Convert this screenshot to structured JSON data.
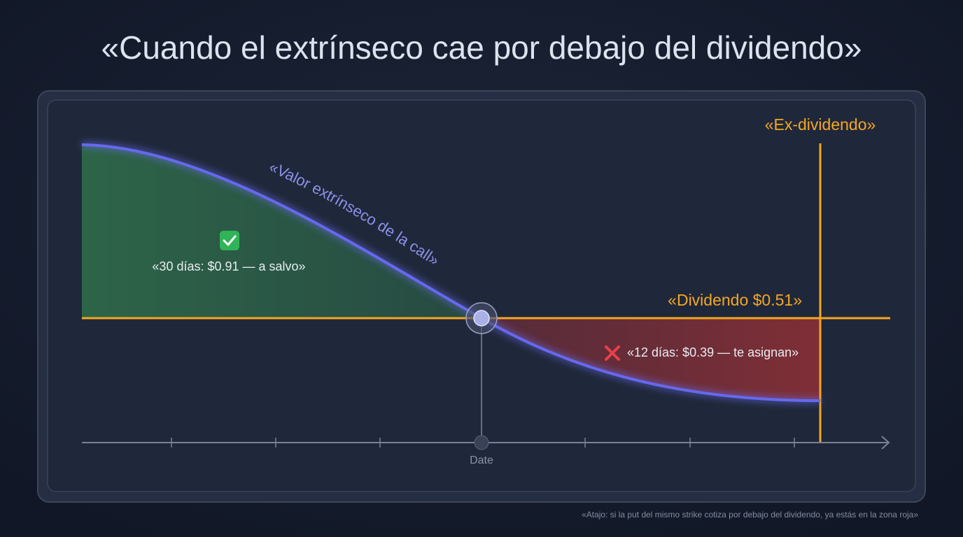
{
  "header": {
    "title": "«Cuando el extrínseco cae por debajo del dividendo»"
  },
  "diagram": {
    "curve_label": "«Valor extrínseco de la call»",
    "safe_note": "«30 días: $0.91 — a salvo»",
    "risk_note": "«12 días: $0.39 — te asignan»",
    "dividend_label": "«Dividendo $0.51»",
    "ex_dividend_label": "«Ex-dividendo»",
    "x_axis_label": "Date"
  },
  "footer": {
    "note": "«Atajo: si la put del mismo strike cotiza por debajo del dividendo, ya estás en la zona roja»"
  }
}
